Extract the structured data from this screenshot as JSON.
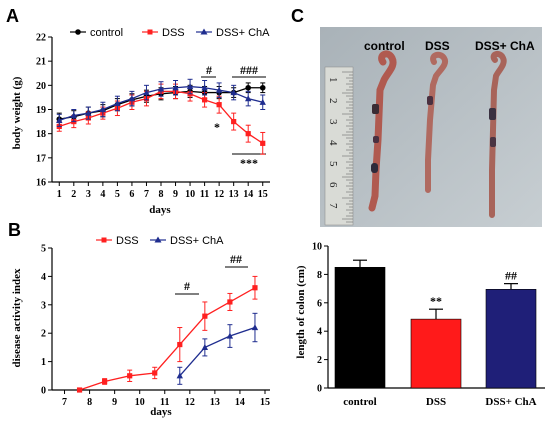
{
  "panels": {
    "a": "A",
    "b": "B",
    "c": "C"
  },
  "photo": {
    "labels": [
      "control",
      "DSS",
      "DSS+ ChA"
    ],
    "ruler_numbers": [
      "1",
      "2",
      "3",
      "4",
      "5",
      "6",
      "7"
    ]
  },
  "chart_data": [
    {
      "id": "A",
      "type": "line",
      "xlabel": "days",
      "ylabel": "body weight (g)",
      "xlim": [
        1,
        15
      ],
      "ylim": [
        16,
        22
      ],
      "x": [
        1,
        2,
        3,
        4,
        5,
        6,
        7,
        8,
        9,
        10,
        11,
        12,
        13,
        14,
        15
      ],
      "x_ticks": [
        "1",
        "2",
        "3",
        "4",
        "5",
        "6",
        "7",
        "8",
        "9",
        "10",
        "11",
        "12",
        "13",
        "14",
        "15"
      ],
      "y_ticks": [
        "16",
        "17",
        "18",
        "19",
        "20",
        "21",
        "22"
      ],
      "legend_position": "top",
      "series": [
        {
          "name": "control",
          "color": "#000000",
          "marker": "circle",
          "values": [
            18.6,
            18.7,
            18.85,
            18.95,
            19.2,
            19.4,
            19.55,
            19.65,
            19.7,
            19.75,
            19.7,
            19.7,
            19.7,
            19.9,
            19.9
          ],
          "errors": [
            0.25,
            0.25,
            0.25,
            0.25,
            0.25,
            0.25,
            0.25,
            0.25,
            0.25,
            0.25,
            0.25,
            0.25,
            0.2,
            0.2,
            0.2
          ]
        },
        {
          "name": "DSS",
          "color": "#ff2020",
          "marker": "square",
          "values": [
            18.3,
            18.5,
            18.65,
            18.85,
            19.05,
            19.3,
            19.45,
            19.75,
            19.75,
            19.65,
            19.4,
            19.2,
            18.5,
            18.0,
            17.6
          ],
          "errors": [
            0.2,
            0.25,
            0.25,
            0.25,
            0.3,
            0.3,
            0.3,
            0.3,
            0.3,
            0.3,
            0.3,
            0.35,
            0.35,
            0.35,
            0.45
          ]
        },
        {
          "name": "DSS+ ChA",
          "color": "#1f2d8f",
          "marker": "triangle",
          "values": [
            18.55,
            18.75,
            18.85,
            19.0,
            19.25,
            19.45,
            19.7,
            19.85,
            19.9,
            19.95,
            19.9,
            19.8,
            19.7,
            19.45,
            19.3
          ],
          "errors": [
            0.25,
            0.25,
            0.25,
            0.3,
            0.3,
            0.3,
            0.3,
            0.3,
            0.3,
            0.3,
            0.3,
            0.3,
            0.3,
            0.3,
            0.3
          ]
        }
      ],
      "annotations": [
        "#",
        "###",
        "*",
        "***"
      ]
    },
    {
      "id": "B",
      "type": "line",
      "xlabel": "days",
      "ylabel": "disease activity index",
      "xlim": [
        6.5,
        15.2
      ],
      "ylim": [
        0,
        5
      ],
      "x_ticks": [
        "7",
        "8",
        "9",
        "10",
        "11",
        "12",
        "13",
        "14",
        "15"
      ],
      "y_ticks": [
        "0",
        "1",
        "2",
        "3",
        "4",
        "5"
      ],
      "legend_position": "top",
      "series": [
        {
          "name": "DSS",
          "color": "#ff2020",
          "marker": "square",
          "x": [
            7.6,
            8.6,
            9.6,
            10.6,
            11.6,
            12.6,
            13.6,
            14.6
          ],
          "values": [
            0,
            0.3,
            0.5,
            0.6,
            1.6,
            2.6,
            3.1,
            3.6
          ],
          "errors": [
            0,
            0.1,
            0.2,
            0.2,
            0.6,
            0.5,
            0.3,
            0.4
          ]
        },
        {
          "name": "DSS+ ChA",
          "color": "#1f2d8f",
          "marker": "triangle",
          "x": [
            11.6,
            12.6,
            13.6,
            14.6
          ],
          "values": [
            0.5,
            1.5,
            1.9,
            2.2
          ],
          "errors": [
            0.3,
            0.3,
            0.4,
            0.5
          ]
        }
      ],
      "annotations": [
        "#",
        "##"
      ]
    },
    {
      "id": "C",
      "type": "bar",
      "ylabel": "length of colon (cm)",
      "ylim": [
        0,
        10
      ],
      "y_ticks": [
        "0",
        "2",
        "4",
        "6",
        "8",
        "10"
      ],
      "categories": [
        "control",
        "DSS",
        "DSS+ ChA"
      ],
      "values": [
        8.5,
        4.85,
        6.95
      ],
      "errors": [
        0.5,
        0.7,
        0.4
      ],
      "colors": [
        "#000000",
        "#ff1a1a",
        "#1f1f78"
      ],
      "annotations": [
        "",
        "**",
        "##"
      ]
    }
  ]
}
